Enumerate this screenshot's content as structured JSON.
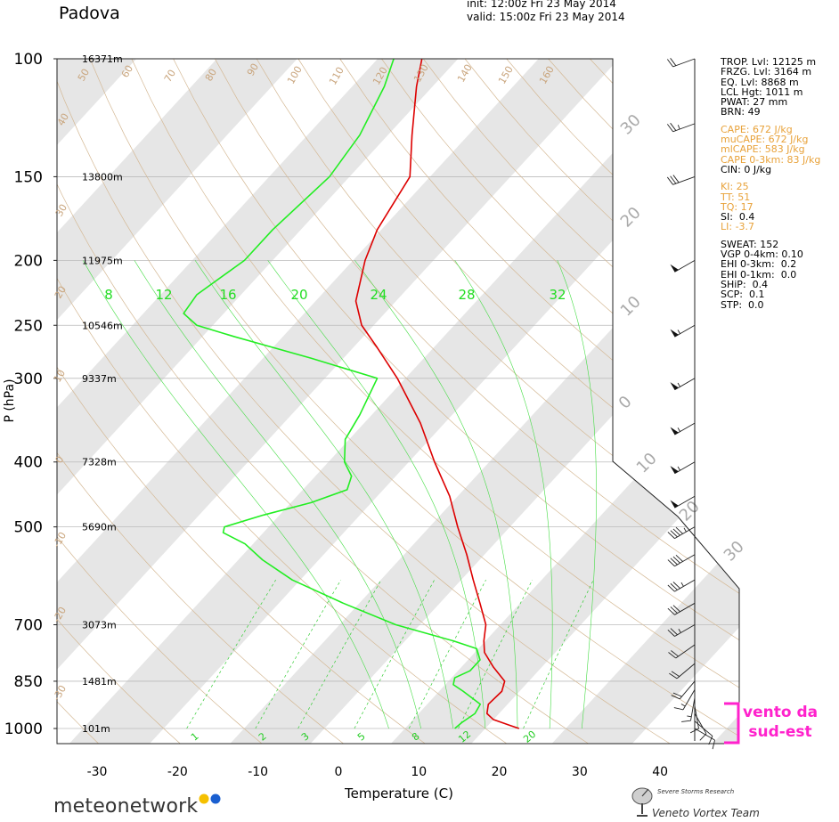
{
  "header": {
    "station": "Padova",
    "init": "init: 12:00z Fri 23 May 2014",
    "valid": "valid: 15:00z Fri 23 May 2014"
  },
  "colors": {
    "temperature": "#dd0000",
    "dewpoint": "#22ee22",
    "band": "#e6e6e6",
    "isobar": "#bbbbbb",
    "dry_adiabat": "#d4b894",
    "mixing_ratio": "#33cc33",
    "annotation": "#ff22cc",
    "index_highlight": "#e8a23a"
  },
  "chart_data": {
    "type": "line",
    "subtype": "skew-T log-P diagram",
    "xlabel": "Temperature (C)",
    "ylabel": "P (hPa)",
    "xlim": [
      -34,
      45
    ],
    "ylim": [
      1050,
      100
    ],
    "x_scale": "linear, skewed",
    "y_scale": "log",
    "x_ticks": [
      "-30",
      "-20",
      "-10",
      "0",
      "10",
      "20",
      "30",
      "40"
    ],
    "x_tick_values": [
      -30,
      -20,
      -10,
      0,
      10,
      20,
      30,
      40
    ],
    "y_ticks": [
      "100",
      "150",
      "200",
      "250",
      "300",
      "400",
      "500",
      "700",
      "850",
      "1000"
    ],
    "y_tick_values": [
      100,
      150,
      200,
      250,
      300,
      400,
      500,
      700,
      850,
      1000
    ],
    "heights": [
      {
        "p": 100,
        "label": "16371m"
      },
      {
        "p": 150,
        "label": "13800m"
      },
      {
        "p": 200,
        "label": "11975m"
      },
      {
        "p": 250,
        "label": "10546m"
      },
      {
        "p": 300,
        "label": "9337m"
      },
      {
        "p": 400,
        "label": "7328m"
      },
      {
        "p": 500,
        "label": "5690m"
      },
      {
        "p": 700,
        "label": "3073m"
      },
      {
        "p": 850,
        "label": "1481m"
      },
      {
        "p": 1000,
        "label": "101m"
      }
    ],
    "series": [
      {
        "name": "temperature",
        "points": [
          {
            "p": 1000,
            "t": 24.2
          },
          {
            "p": 990,
            "t": 22.8
          },
          {
            "p": 970,
            "t": 20.0
          },
          {
            "p": 950,
            "t": 18.5
          },
          {
            "p": 920,
            "t": 17.6
          },
          {
            "p": 880,
            "t": 17.8
          },
          {
            "p": 850,
            "t": 17.0
          },
          {
            "p": 810,
            "t": 14.0
          },
          {
            "p": 770,
            "t": 11.2
          },
          {
            "p": 740,
            "t": 9.8
          },
          {
            "p": 700,
            "t": 8.2
          },
          {
            "p": 650,
            "t": 5.0
          },
          {
            "p": 600,
            "t": 1.5
          },
          {
            "p": 550,
            "t": -2.2
          },
          {
            "p": 500,
            "t": -6.5
          },
          {
            "p": 450,
            "t": -11.0
          },
          {
            "p": 400,
            "t": -16.8
          },
          {
            "p": 350,
            "t": -23.0
          },
          {
            "p": 300,
            "t": -31.0
          },
          {
            "p": 270,
            "t": -37.0
          },
          {
            "p": 250,
            "t": -41.5
          },
          {
            "p": 230,
            "t": -45.0
          },
          {
            "p": 200,
            "t": -48.5
          },
          {
            "p": 180,
            "t": -50.5
          },
          {
            "p": 150,
            "t": -52.5
          },
          {
            "p": 130,
            "t": -57.0
          },
          {
            "p": 110,
            "t": -62.0
          },
          {
            "p": 100,
            "t": -64.5
          }
        ]
      },
      {
        "name": "dewpoint",
        "points": [
          {
            "p": 1000,
            "t": 16.2
          },
          {
            "p": 980,
            "t": 16.4
          },
          {
            "p": 950,
            "t": 17.0
          },
          {
            "p": 920,
            "t": 16.6
          },
          {
            "p": 880,
            "t": 13.0
          },
          {
            "p": 860,
            "t": 11.0
          },
          {
            "p": 840,
            "t": 10.4
          },
          {
            "p": 820,
            "t": 11.5
          },
          {
            "p": 790,
            "t": 11.5
          },
          {
            "p": 760,
            "t": 9.8
          },
          {
            "p": 740,
            "t": 6.0
          },
          {
            "p": 700,
            "t": -3.0
          },
          {
            "p": 650,
            "t": -12.0
          },
          {
            "p": 600,
            "t": -21.0
          },
          {
            "p": 560,
            "t": -27.0
          },
          {
            "p": 530,
            "t": -31.0
          },
          {
            "p": 510,
            "t": -35.0
          },
          {
            "p": 500,
            "t": -35.5
          },
          {
            "p": 480,
            "t": -32.0
          },
          {
            "p": 460,
            "t": -27.5
          },
          {
            "p": 440,
            "t": -24.5
          },
          {
            "p": 420,
            "t": -25.5
          },
          {
            "p": 400,
            "t": -28.0
          },
          {
            "p": 370,
            "t": -30.5
          },
          {
            "p": 340,
            "t": -31.5
          },
          {
            "p": 300,
            "t": -33.5
          },
          {
            "p": 280,
            "t": -44.0
          },
          {
            "p": 260,
            "t": -56.0
          },
          {
            "p": 250,
            "t": -62.0
          },
          {
            "p": 240,
            "t": -65.0
          },
          {
            "p": 225,
            "t": -65.5
          },
          {
            "p": 200,
            "t": -63.5
          },
          {
            "p": 180,
            "t": -63.5
          },
          {
            "p": 150,
            "t": -62.5
          },
          {
            "p": 130,
            "t": -63.5
          },
          {
            "p": 110,
            "t": -66.0
          },
          {
            "p": 100,
            "t": -68.0
          }
        ]
      }
    ],
    "isotherm_band_labels": [
      "-30",
      "-20",
      "-10",
      "0",
      "10",
      "20",
      "30"
    ],
    "mixing_ratio_labels": [
      "1",
      "2",
      "3",
      "5",
      "8",
      "12",
      "20"
    ],
    "mixing_ratio_values": [
      1,
      2,
      3,
      5,
      8,
      12,
      20
    ],
    "theta_e_labels": [
      "8",
      "12",
      "16",
      "20",
      "24",
      "28",
      "32"
    ],
    "dry_adiabat_labels": [
      "50",
      "60",
      "70",
      "80",
      "90",
      "100",
      "110",
      "120",
      "130",
      "140",
      "150",
      "160",
      "40",
      "30",
      "20",
      "10",
      "0",
      "-10",
      "-20",
      "-30"
    ],
    "wind_barbs": [
      {
        "p": 1000,
        "dir": 120,
        "speed": 10
      },
      {
        "p": 975,
        "dir": 130,
        "speed": 10
      },
      {
        "p": 950,
        "dir": 150,
        "speed": 10
      },
      {
        "p": 925,
        "dir": 170,
        "speed": 10
      },
      {
        "p": 900,
        "dir": 190,
        "speed": 15
      },
      {
        "p": 875,
        "dir": 210,
        "speed": 15
      },
      {
        "p": 850,
        "dir": 220,
        "speed": 20
      },
      {
        "p": 800,
        "dir": 230,
        "speed": 20
      },
      {
        "p": 750,
        "dir": 235,
        "speed": 20
      },
      {
        "p": 700,
        "dir": 240,
        "speed": 25
      },
      {
        "p": 650,
        "dir": 240,
        "speed": 30
      },
      {
        "p": 600,
        "dir": 240,
        "speed": 35
      },
      {
        "p": 550,
        "dir": 240,
        "speed": 40
      },
      {
        "p": 500,
        "dir": 240,
        "speed": 45
      },
      {
        "p": 450,
        "dir": 240,
        "speed": 50
      },
      {
        "p": 400,
        "dir": 240,
        "speed": 55
      },
      {
        "p": 350,
        "dir": 240,
        "speed": 55
      },
      {
        "p": 300,
        "dir": 240,
        "speed": 55
      },
      {
        "p": 250,
        "dir": 240,
        "speed": 55
      },
      {
        "p": 200,
        "dir": 240,
        "speed": 50
      },
      {
        "p": 150,
        "dir": 250,
        "speed": 30
      },
      {
        "p": 125,
        "dir": 250,
        "speed": 25
      },
      {
        "p": 100,
        "dir": 250,
        "speed": 20
      }
    ]
  },
  "indices": [
    {
      "text": "TROP. Lvl: 12125 m",
      "color": "black"
    },
    {
      "text": "FRZG. Lvl: 3164 m",
      "color": "black"
    },
    {
      "text": "EQ. Lvl: 8868 m",
      "color": "black"
    },
    {
      "text": "LCL Hgt: 1011 m",
      "color": "black"
    },
    {
      "text": "PWAT: 27 mm",
      "color": "black"
    },
    {
      "text": "BRN: 49",
      "color": "black"
    },
    {
      "text": "",
      "color": "gap"
    },
    {
      "text": "CAPE: 672 J/kg",
      "color": "orange"
    },
    {
      "text": "muCAPE: 672 J/kg",
      "color": "orange"
    },
    {
      "text": "mlCAPE: 583 J/kg",
      "color": "orange"
    },
    {
      "text": "CAPE 0-3km: 83 J/kg",
      "color": "orange"
    },
    {
      "text": "CIN: 0 J/kg",
      "color": "black"
    },
    {
      "text": "",
      "color": "gap"
    },
    {
      "text": "KI: 25",
      "color": "orange"
    },
    {
      "text": "TT: 51",
      "color": "orange"
    },
    {
      "text": "TQ: 17",
      "color": "orange"
    },
    {
      "text": "SI:  0.4",
      "color": "black"
    },
    {
      "text": "LI: -3.7",
      "color": "orange"
    },
    {
      "text": "",
      "color": "gap"
    },
    {
      "text": "SWEAT: 152",
      "color": "black"
    },
    {
      "text": "VGP 0-4km: 0.10",
      "color": "black"
    },
    {
      "text": "EHI 0-3km:  0.2",
      "color": "black"
    },
    {
      "text": "EHI 0-1km:  0.0",
      "color": "black"
    },
    {
      "text": "SHiP:  0.4",
      "color": "black"
    },
    {
      "text": "SCP:  0.1",
      "color": "black"
    },
    {
      "text": "STP:  0.0",
      "color": "black"
    }
  ],
  "annotation": {
    "line1": "vento da",
    "line2": "sud-est"
  },
  "footer": {
    "brand_light": "meteo",
    "brand_bold": "network",
    "vortex_top": "Severe Storms Research",
    "vortex_bottom": "Veneto Vortex Team"
  }
}
